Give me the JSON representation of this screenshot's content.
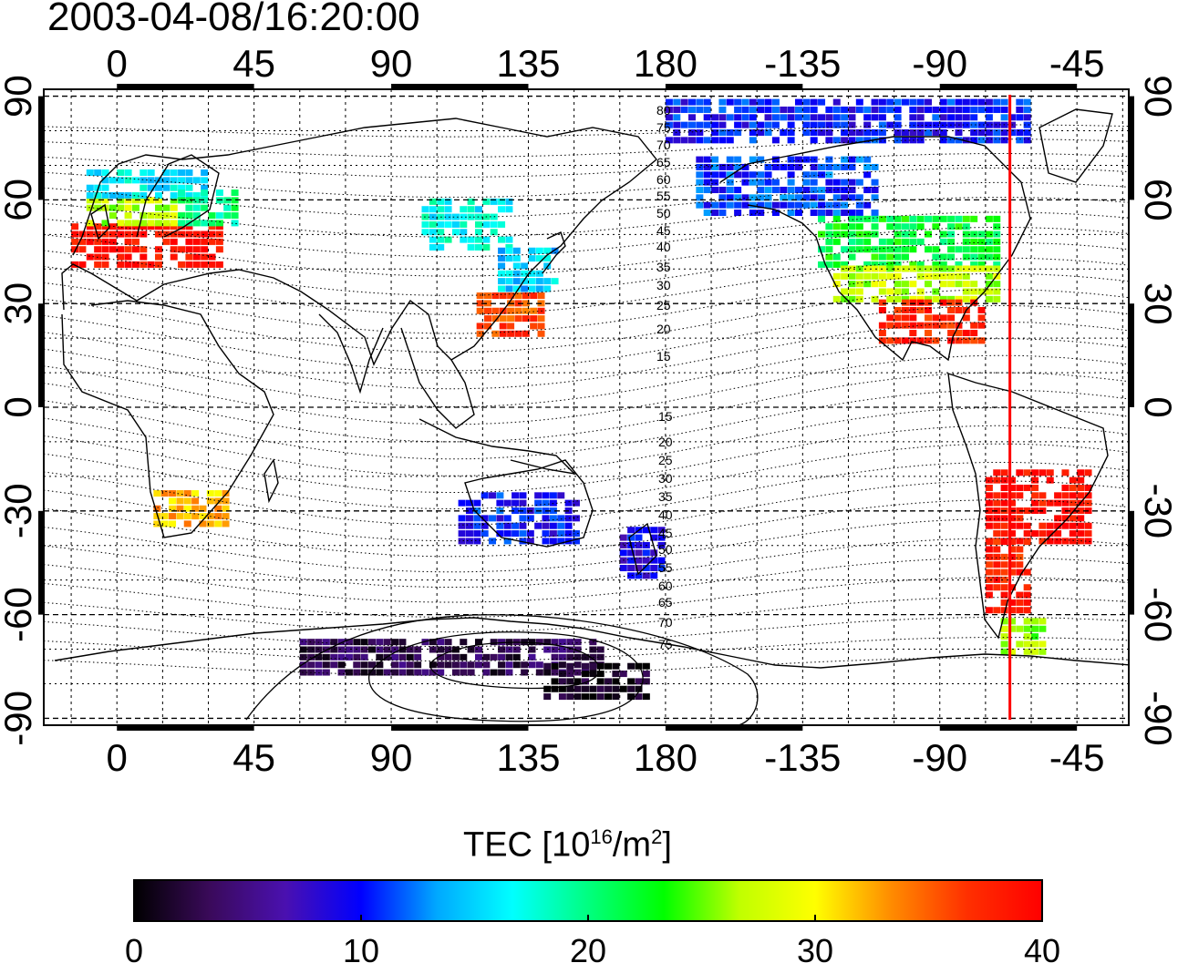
{
  "title": "2003-04-08/16:20:00",
  "colorbar": {
    "label_prefix": "TEC  [10",
    "label_exp1": "16",
    "label_mid": "/m",
    "label_exp2": "2",
    "label_suffix": "]",
    "min": 0,
    "max": 40,
    "ticks": [
      "0",
      "10",
      "20",
      "30",
      "40"
    ],
    "colormap": [
      "#000000",
      "#3a0a5a",
      "#4a10b0",
      "#0000ff",
      "#00a8ff",
      "#00ffff",
      "#00ff80",
      "#00ff00",
      "#c0ff00",
      "#ffff00",
      "#ff8c00",
      "#ff3000",
      "#ff0000"
    ]
  },
  "map": {
    "lon_ticks_top": [
      "0",
      "45",
      "90",
      "135",
      "180",
      "-135",
      "-90",
      "-45"
    ],
    "lon_ticks_bottom": [
      "0",
      "45",
      "90",
      "135",
      "180",
      "-135",
      "-90",
      "-45"
    ],
    "lat_ticks_left": [
      "90",
      "60",
      "30",
      "0",
      "-30",
      "-60",
      "-90"
    ],
    "lat_ticks_right": [
      "90",
      "60",
      "30",
      "0",
      "-30",
      "-60",
      "-90"
    ],
    "meridian_lon": -67,
    "meridian_color": "#ff0000",
    "lon_range": [
      -24,
      332
    ],
    "lat_range": [
      -92,
      92
    ],
    "mag_labels_north": [
      "80",
      "75",
      "70",
      "65",
      "60",
      "55",
      "50",
      "45",
      "40",
      "35",
      "30",
      "25",
      "20",
      "15"
    ],
    "mag_labels_south": [
      "15",
      "20",
      "25",
      "30",
      "35",
      "40",
      "45",
      "50",
      "55",
      "60",
      "65",
      "70",
      "75"
    ]
  },
  "tec_regions": [
    {
      "lon": [
        -15,
        35
      ],
      "lat": [
        40,
        52
      ],
      "tec": 39
    },
    {
      "lon": [
        -10,
        20
      ],
      "lat": [
        52,
        60
      ],
      "tec": 27
    },
    {
      "lon": [
        -10,
        30
      ],
      "lat": [
        60,
        68
      ],
      "tec": 16
    },
    {
      "lon": [
        20,
        40
      ],
      "lat": [
        52,
        62
      ],
      "tec": 20
    },
    {
      "lon": [
        100,
        130
      ],
      "lat": [
        45,
        60
      ],
      "tec": 17
    },
    {
      "lon": [
        125,
        145
      ],
      "lat": [
        33,
        45
      ],
      "tec": 15
    },
    {
      "lon": [
        118,
        140
      ],
      "lat": [
        20,
        33
      ],
      "tec": 36
    },
    {
      "lon": [
        -170,
        -110
      ],
      "lat": [
        55,
        72
      ],
      "tec": 11
    },
    {
      "lon": [
        -130,
        -70
      ],
      "lat": [
        40,
        55
      ],
      "tec": 22
    },
    {
      "lon": [
        -125,
        -70
      ],
      "lat": [
        30,
        40
      ],
      "tec": 27
    },
    {
      "lon": [
        -110,
        -75
      ],
      "lat": [
        18,
        30
      ],
      "tec": 38
    },
    {
      "lon": [
        -75,
        -40
      ],
      "lat": [
        -40,
        -20
      ],
      "tec": 39
    },
    {
      "lon": [
        -75,
        -60
      ],
      "lat": [
        -60,
        -40
      ],
      "tec": 38
    },
    {
      "lon": [
        -70,
        -55
      ],
      "lat": [
        -72,
        -62
      ],
      "tec": 26
    },
    {
      "lon": [
        12,
        35
      ],
      "lat": [
        -35,
        -25
      ],
      "tec": 32
    },
    {
      "lon": [
        112,
        150
      ],
      "lat": [
        -40,
        -25
      ],
      "tec": 10
    },
    {
      "lon": [
        165,
        180
      ],
      "lat": [
        -50,
        -35
      ],
      "tec": 9
    },
    {
      "lon": [
        60,
        160
      ],
      "lat": [
        -78,
        -68
      ],
      "tec": 3
    },
    {
      "lon": [
        140,
        175
      ],
      "lat": [
        -85,
        -76
      ],
      "tec": 1
    },
    {
      "lon": [
        -180,
        -60
      ],
      "lat": [
        76,
        88
      ],
      "tec": 10
    }
  ]
}
